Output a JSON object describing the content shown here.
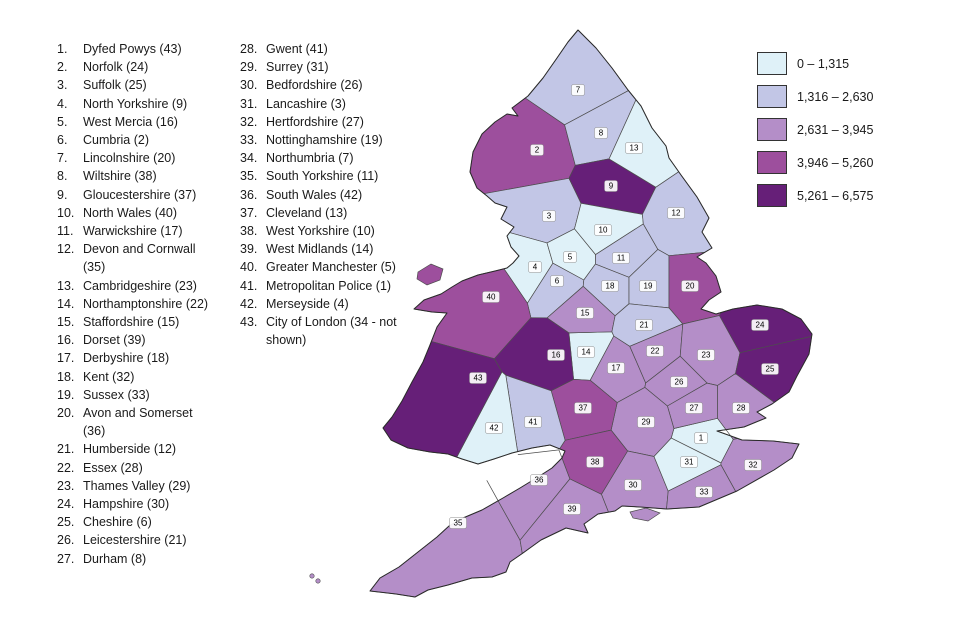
{
  "list": {
    "column1": [
      {
        "num": "1.",
        "label": "Dyfed Powys (43)"
      },
      {
        "num": "2.",
        "label": "Norfolk (24)"
      },
      {
        "num": "3.",
        "label": "Suffolk (25)"
      },
      {
        "num": "4.",
        "label": "North Yorkshire (9)"
      },
      {
        "num": "5.",
        "label": "West Mercia (16)"
      },
      {
        "num": "6.",
        "label": "Cumbria (2)"
      },
      {
        "num": "7.",
        "label": "Lincolnshire (20)"
      },
      {
        "num": "8.",
        "label": "Wiltshire (38)"
      },
      {
        "num": "9.",
        "label": "Gloucestershire (37)"
      },
      {
        "num": "10.",
        "label": "North Wales (40)"
      },
      {
        "num": "11.",
        "label": "Warwickshire (17)"
      },
      {
        "num": "12.",
        "label": "Devon and Cornwall (35)"
      },
      {
        "num": "13.",
        "label": "Cambridgeshire (23)"
      },
      {
        "num": "14.",
        "label": "Northamptonshire (22)"
      },
      {
        "num": "15.",
        "label": "Staffordshire (15)"
      },
      {
        "num": "16.",
        "label": "Dorset (39)"
      },
      {
        "num": "17.",
        "label": "Derbyshire (18)"
      },
      {
        "num": "18.",
        "label": "Kent (32)"
      },
      {
        "num": "19.",
        "label": "Sussex (33)"
      },
      {
        "num": "20.",
        "label": "Avon and Somerset (36)"
      },
      {
        "num": "21.",
        "label": "Humberside (12)"
      },
      {
        "num": "22.",
        "label": "Essex (28)"
      },
      {
        "num": "23.",
        "label": "Thames Valley (29)"
      },
      {
        "num": "24.",
        "label": "Hampshire (30)"
      },
      {
        "num": "25.",
        "label": "Cheshire (6)"
      },
      {
        "num": "26.",
        "label": "Leicestershire (21)"
      },
      {
        "num": "27.",
        "label": "Durham (8)"
      }
    ],
    "column2": [
      {
        "num": "28.",
        "label": "Gwent (41)"
      },
      {
        "num": "29.",
        "label": "Surrey (31)"
      },
      {
        "num": "30.",
        "label": "Bedfordshire (26)"
      },
      {
        "num": "31.",
        "label": "Lancashire (3)"
      },
      {
        "num": "32.",
        "label": "Hertfordshire (27)"
      },
      {
        "num": "33.",
        "label": "Nottinghamshire (19)"
      },
      {
        "num": "34.",
        "label": "Northumbria (7)"
      },
      {
        "num": "35.",
        "label": "South Yorkshire (11)"
      },
      {
        "num": "36.",
        "label": "South Wales (42)"
      },
      {
        "num": "37.",
        "label": "Cleveland (13)"
      },
      {
        "num": "38.",
        "label": "West Yorkshire (10)"
      },
      {
        "num": "39.",
        "label": "West Midlands (14)"
      },
      {
        "num": "40.",
        "label": "Greater Manchester (5)"
      },
      {
        "num": "41.",
        "label": "Metropolitan Police (1)"
      },
      {
        "num": "42.",
        "label": "Merseyside (4)"
      },
      {
        "num": "43.",
        "label": "City of London (34 - not shown)"
      }
    ]
  },
  "legend": {
    "bands": [
      {
        "range": "0 – 1,315",
        "color": "#dff1f8"
      },
      {
        "range": "1,316 – 2,630",
        "color": "#c2c6e6"
      },
      {
        "range": "2,631 – 3,945",
        "color": "#b48ec8"
      },
      {
        "range": "3,946 – 5,260",
        "color": "#9d4f9d"
      },
      {
        "range": "5,261 – 6,575",
        "color": "#661f78"
      }
    ]
  },
  "map": {
    "regions": [
      {
        "map_label": "1",
        "name": "Metropolitan Police",
        "band": 0
      },
      {
        "map_label": "2",
        "name": "Cumbria",
        "band": 3
      },
      {
        "map_label": "3",
        "name": "Lancashire",
        "band": 1
      },
      {
        "map_label": "4",
        "name": "Merseyside",
        "band": 0
      },
      {
        "map_label": "5",
        "name": "Greater Manchester",
        "band": 0
      },
      {
        "map_label": "6",
        "name": "Cheshire",
        "band": 1
      },
      {
        "map_label": "7",
        "name": "Northumbria",
        "band": 1
      },
      {
        "map_label": "8",
        "name": "Durham",
        "band": 1
      },
      {
        "map_label": "9",
        "name": "North Yorkshire",
        "band": 4
      },
      {
        "map_label": "10",
        "name": "West Yorkshire",
        "band": 0
      },
      {
        "map_label": "11",
        "name": "South Yorkshire",
        "band": 1
      },
      {
        "map_label": "12",
        "name": "Humberside",
        "band": 1
      },
      {
        "map_label": "13",
        "name": "Cleveland",
        "band": 0
      },
      {
        "map_label": "14",
        "name": "West Midlands",
        "band": 0
      },
      {
        "map_label": "15",
        "name": "Staffordshire",
        "band": 2
      },
      {
        "map_label": "16",
        "name": "West Mercia",
        "band": 4
      },
      {
        "map_label": "17",
        "name": "Warwickshire",
        "band": 2
      },
      {
        "map_label": "18",
        "name": "Derbyshire",
        "band": 1
      },
      {
        "map_label": "19",
        "name": "Nottinghamshire",
        "band": 1
      },
      {
        "map_label": "20",
        "name": "Lincolnshire",
        "band": 3
      },
      {
        "map_label": "21",
        "name": "Leicestershire",
        "band": 1
      },
      {
        "map_label": "22",
        "name": "Northamptonshire",
        "band": 2
      },
      {
        "map_label": "23",
        "name": "Cambridgeshire",
        "band": 2
      },
      {
        "map_label": "24",
        "name": "Norfolk",
        "band": 4
      },
      {
        "map_label": "25",
        "name": "Suffolk",
        "band": 4
      },
      {
        "map_label": "26",
        "name": "Bedfordshire",
        "band": 2
      },
      {
        "map_label": "27",
        "name": "Hertfordshire",
        "band": 2
      },
      {
        "map_label": "28",
        "name": "Essex",
        "band": 2
      },
      {
        "map_label": "29",
        "name": "Thames Valley",
        "band": 2
      },
      {
        "map_label": "30",
        "name": "Hampshire",
        "band": 2
      },
      {
        "map_label": "31",
        "name": "Surrey",
        "band": 0
      },
      {
        "map_label": "32",
        "name": "Kent",
        "band": 2
      },
      {
        "map_label": "33",
        "name": "Sussex",
        "band": 2
      },
      {
        "map_label": "35",
        "name": "Devon and Cornwall",
        "band": 2
      },
      {
        "map_label": "36",
        "name": "Avon and Somerset",
        "band": 2
      },
      {
        "map_label": "37",
        "name": "Gloucestershire",
        "band": 3
      },
      {
        "map_label": "38",
        "name": "Wiltshire",
        "band": 3
      },
      {
        "map_label": "39",
        "name": "Dorset",
        "band": 2
      },
      {
        "map_label": "40",
        "name": "North Wales",
        "band": 3
      },
      {
        "map_label": "41",
        "name": "Gwent",
        "band": 1
      },
      {
        "map_label": "42",
        "name": "South Wales",
        "band": 0
      },
      {
        "map_label": "43",
        "name": "Dyfed Powys",
        "band": 4
      }
    ],
    "islands": [
      {
        "name": "Anglesey",
        "band": 3
      },
      {
        "name": "Isle of Wight",
        "band": 2
      },
      {
        "name": "Isles of Scilly",
        "band": 2
      }
    ]
  }
}
